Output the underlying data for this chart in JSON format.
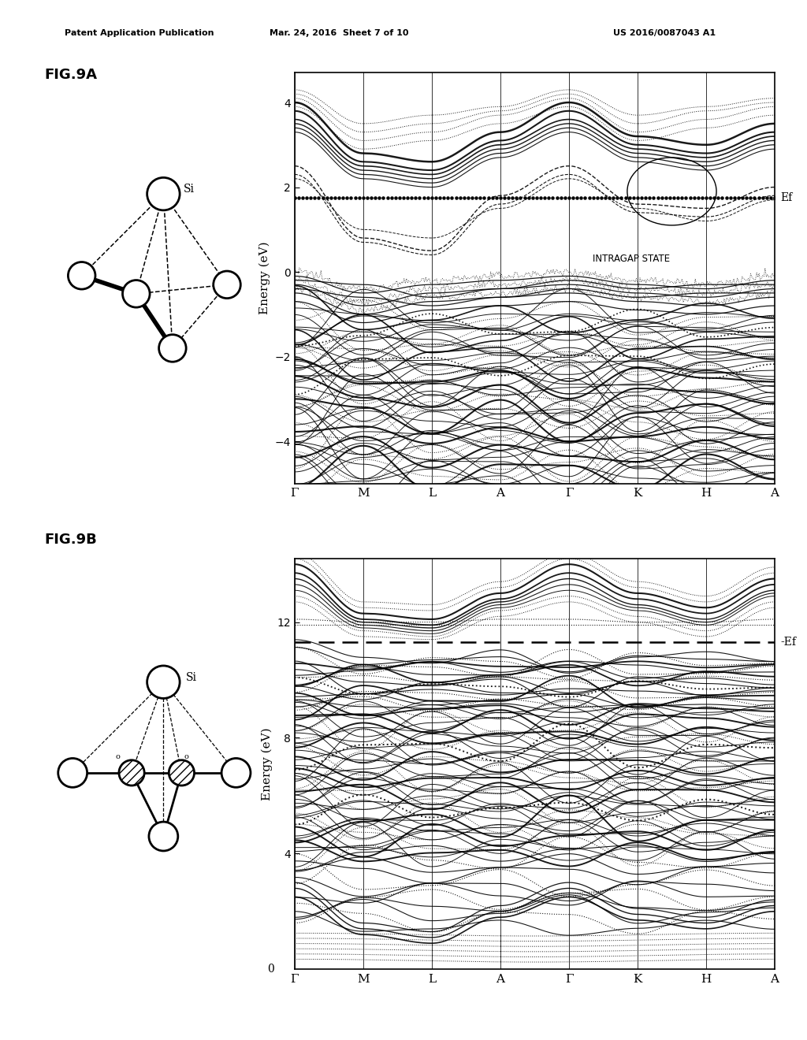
{
  "page_header_left": "Patent Application Publication",
  "page_header_mid": "Mar. 24, 2016  Sheet 7 of 10",
  "page_header_right": "US 2016/0087043 A1",
  "fig9a_label": "FIG.9A",
  "fig9b_label": "FIG.9B",
  "background_color": "#ffffff",
  "text_color": "#000000",
  "fig9a": {
    "ylabel": "Energy (eV)",
    "ylim": [
      -5.0,
      4.7
    ],
    "yticks": [
      -4,
      -2,
      0,
      2,
      4
    ],
    "ef_value": 1.75,
    "ef_label": "Ef",
    "intragap_label": "INTRAGAP STATE",
    "xtick_labels": [
      "Γ",
      "M",
      "L",
      "A",
      "Γ",
      "K",
      "H",
      "A"
    ]
  },
  "fig9b": {
    "ylabel": "Energy (eV)",
    "ylim": [
      0,
      14.2
    ],
    "yticks": [
      4,
      8,
      12
    ],
    "ef_value": 11.3,
    "ef_label": "-Ef",
    "xtick_labels": [
      "Γ",
      "M",
      "L",
      "A",
      "Γ",
      "K",
      "H",
      "A"
    ]
  }
}
